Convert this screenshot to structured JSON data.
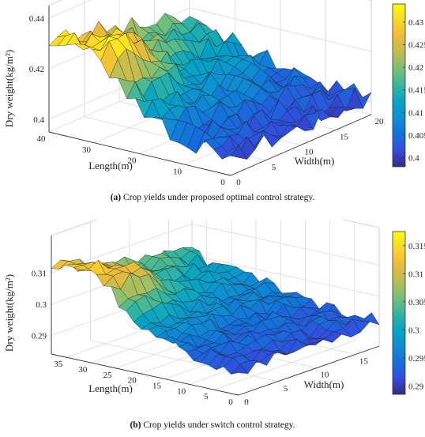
{
  "chart_data": [
    {
      "type": "surface",
      "id": "a",
      "caption_letter": "(a)",
      "caption_text": "Crop yields under proposed optimal control strategy.",
      "xlabel": "Length(m)",
      "ylabel": "Width(m)",
      "zlabel": "Dry weight(kg/m²)",
      "xlim": [
        0,
        40
      ],
      "ylim": [
        0,
        20
      ],
      "zlim": [
        0.395,
        0.445
      ],
      "xticks": [
        0,
        10,
        20,
        30,
        40
      ],
      "yticks": [
        0,
        5,
        10,
        15,
        20
      ],
      "zticks": [
        0.4,
        0.42,
        0.44
      ],
      "zticklabels": [
        "0.4",
        "0.42",
        "0.44"
      ],
      "colorbar_ticks": [
        0.4,
        0.405,
        0.41,
        0.415,
        0.42,
        0.425,
        0.43
      ],
      "colorbar_ticklabels": [
        "0.4",
        "0.405",
        "0.41",
        "0.415",
        "0.42",
        "0.425",
        "0.43"
      ],
      "clim": [
        0.398,
        0.434
      ],
      "colormap": "parula",
      "grid": true,
      "n_length": 22,
      "n_width": 18,
      "length_max": 40,
      "width_max": 20,
      "z_high": 0.432,
      "z_low": 0.402,
      "noise": 0.004
    },
    {
      "type": "surface",
      "id": "b",
      "caption_letter": "(b)",
      "caption_text": "Crop yields under switch control strategy.",
      "xlabel": "Length(m)",
      "ylabel": "Width(m)",
      "zlabel": "Dry weight(kg/m²)",
      "xlim": [
        0,
        38
      ],
      "ylim": [
        0,
        18
      ],
      "zlim": [
        0.284,
        0.322
      ],
      "xticks": [
        0,
        5,
        10,
        15,
        20,
        25,
        30,
        35
      ],
      "yticks": [
        0,
        5,
        10,
        15
      ],
      "zticks": [
        0.29,
        0.3,
        0.31
      ],
      "zticklabels": [
        "0.29",
        "0.3",
        "0.31"
      ],
      "colorbar_ticks": [
        0.29,
        0.295,
        0.3,
        0.305,
        0.31,
        0.315
      ],
      "colorbar_ticklabels": [
        "0.29",
        "0.295",
        "0.3",
        "0.305",
        "0.31",
        "0.315"
      ],
      "clim": [
        0.2885,
        0.3175
      ],
      "colormap": "parula",
      "grid": true,
      "n_length": 26,
      "n_width": 16,
      "length_max": 38,
      "width_max": 18,
      "z_high": 0.312,
      "z_low": 0.292,
      "noise": 0.0022
    }
  ]
}
